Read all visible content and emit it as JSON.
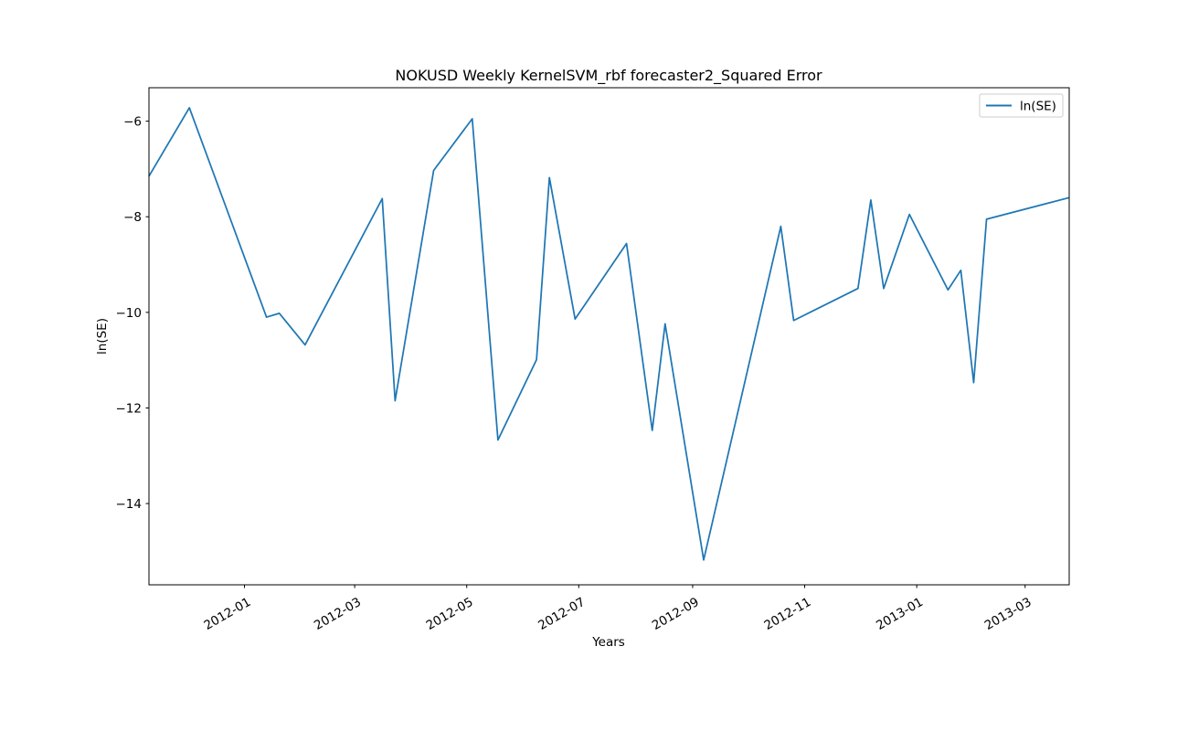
{
  "chart_data": {
    "type": "line",
    "title": "NOKUSD Weekly KernelSVM_rbf forecaster2_Squared Error",
    "xlabel": "Years",
    "ylabel": "ln(SE)",
    "xlim": [
      "2011-11-10",
      "2013-03-25"
    ],
    "ylim": [
      -15.7,
      -5.3
    ],
    "grid": false,
    "legend_position": "top-right",
    "x_ticks": [
      "2012-01",
      "2012-03",
      "2012-05",
      "2012-07",
      "2012-09",
      "2012-11",
      "2013-01",
      "2013-03"
    ],
    "y_ticks": [
      -6,
      -8,
      -10,
      -12,
      -14
    ],
    "y_tick_labels": [
      "−6",
      "−8",
      "−10",
      "−12",
      "−14"
    ],
    "series": [
      {
        "name": "ln(SE)",
        "color": "#1f77b4",
        "x": [
          "2011-11-10",
          "2011-12-02",
          "2012-01-13",
          "2012-01-20",
          "2012-02-03",
          "2012-03-16",
          "2012-03-23",
          "2012-04-13",
          "2012-05-04",
          "2012-05-18",
          "2012-06-08",
          "2012-06-15",
          "2012-06-29",
          "2012-07-27",
          "2012-08-10",
          "2012-08-17",
          "2012-09-07",
          "2012-10-19",
          "2012-10-26",
          "2012-11-30",
          "2012-12-07",
          "2012-12-14",
          "2012-12-28",
          "2013-01-18",
          "2013-01-25",
          "2013-02-01",
          "2013-02-08",
          "2013-03-25"
        ],
        "values": [
          -7.15,
          -5.72,
          -10.1,
          -10.02,
          -10.68,
          -7.62,
          -11.85,
          -7.03,
          -5.95,
          -12.67,
          -10.99,
          -7.18,
          -10.14,
          -8.56,
          -12.47,
          -10.24,
          -15.18,
          -8.2,
          -10.17,
          -9.5,
          -7.65,
          -9.5,
          -7.95,
          -9.53,
          -9.12,
          -11.47,
          -8.05,
          -7.6
        ]
      }
    ]
  }
}
